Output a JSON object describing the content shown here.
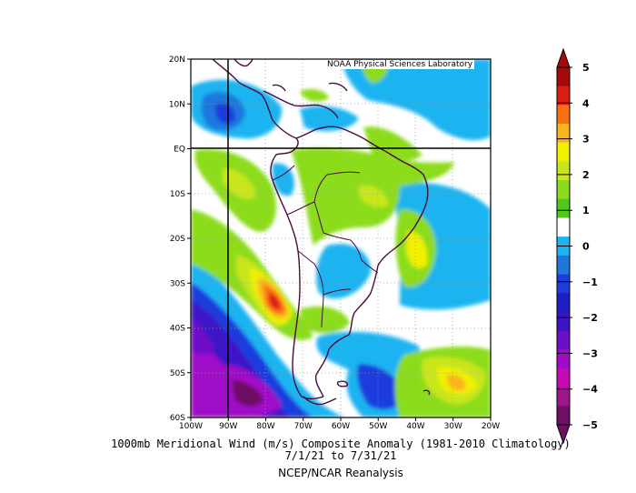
{
  "credit": "NOAA Physical Sciences Laboratory",
  "caption": {
    "line1": "1000mb Meridional Wind (m/s) Composite Anomaly (1981-2010 Climatology)",
    "line2": "7/1/21  to 7/31/21",
    "line3": "NCEP/NCAR Reanalysis"
  },
  "map": {
    "lon_range": [
      -100,
      -20
    ],
    "lat_range": [
      -60,
      20
    ],
    "lon_ticks": [
      "100W",
      "90W",
      "80W",
      "70W",
      "60W",
      "50W",
      "40W",
      "30W",
      "20W"
    ],
    "lat_ticks": [
      "20N",
      "10N",
      "EQ",
      "10S",
      "20S",
      "30S",
      "40S",
      "50S",
      "60S"
    ],
    "reference_lines": {
      "lat": "EQ",
      "lon": "90W"
    }
  },
  "colorbar": {
    "labels": [
      "5",
      "4",
      "3",
      "2",
      "1",
      "0",
      "−1",
      "−2",
      "−3",
      "−4",
      "−5"
    ],
    "colors": [
      "#a50a0a",
      "#dd1e14",
      "#fa6e14",
      "#fab41e",
      "#f0f000",
      "#c8e61e",
      "#8cdc1e",
      "#50c81e",
      "#ffffff",
      "#1eb4f0",
      "#1e78dc",
      "#1e3cdc",
      "#1e1ec8",
      "#3c14c8",
      "#6e0fc8",
      "#a00ac8",
      "#c80ab4",
      "#a0148c",
      "#6e0f64"
    ]
  },
  "colors": {
    "coast": "#4b0a3c",
    "frame": "#000000"
  }
}
